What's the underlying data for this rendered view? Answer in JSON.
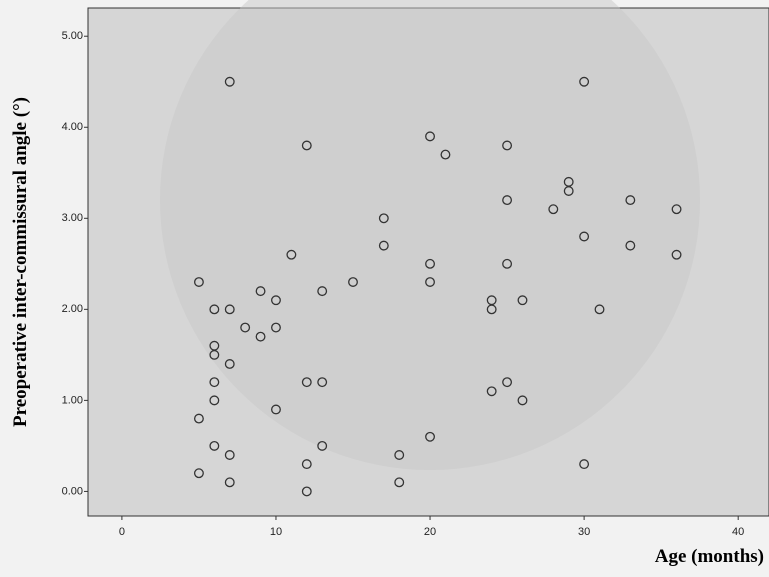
{
  "chart_data": {
    "type": "scatter",
    "x_label": "Age (months)",
    "y_label": "Preoperative inter-commissural angle (°)",
    "x": [
      5,
      5,
      5,
      6,
      6,
      6,
      6,
      6,
      6,
      7,
      7,
      7,
      7,
      7,
      8,
      9,
      9,
      10,
      10,
      10,
      11,
      12,
      12,
      12,
      12,
      13,
      13,
      13,
      15,
      17,
      17,
      18,
      18,
      20,
      20,
      20,
      20,
      21,
      24,
      24,
      24,
      25,
      25,
      25,
      25,
      26,
      26,
      28,
      29,
      29,
      30,
      30,
      30,
      31,
      33,
      33,
      36,
      36
    ],
    "values": [
      2.3,
      0.8,
      0.2,
      2.0,
      1.6,
      1.5,
      1.2,
      1.0,
      0.5,
      4.5,
      2.0,
      1.4,
      0.4,
      0.1,
      1.8,
      2.2,
      1.7,
      2.1,
      1.8,
      0.9,
      2.6,
      3.8,
      1.2,
      0.3,
      0.0,
      2.2,
      1.2,
      0.5,
      2.3,
      3.0,
      2.7,
      0.4,
      0.1,
      3.9,
      2.5,
      2.3,
      0.6,
      3.7,
      2.1,
      2.0,
      1.1,
      3.8,
      3.2,
      2.5,
      1.2,
      2.1,
      1.0,
      3.1,
      3.4,
      3.3,
      4.5,
      2.8,
      0.3,
      2.0,
      3.2,
      2.7,
      3.1,
      2.6
    ],
    "color": "#333333",
    "xlim": [
      -2.2,
      42
    ],
    "ylim": [
      -0.27,
      5.31
    ],
    "xticks": [
      0,
      10,
      20,
      30,
      40
    ],
    "yticks": [
      {
        "value": 0,
        "label": "0.00"
      },
      {
        "value": 1,
        "label": "1.00"
      },
      {
        "value": 2,
        "label": "2.00"
      },
      {
        "value": 3,
        "label": "3.00"
      },
      {
        "value": 4,
        "label": "4.00"
      },
      {
        "value": 5,
        "label": "5.00"
      }
    ]
  }
}
